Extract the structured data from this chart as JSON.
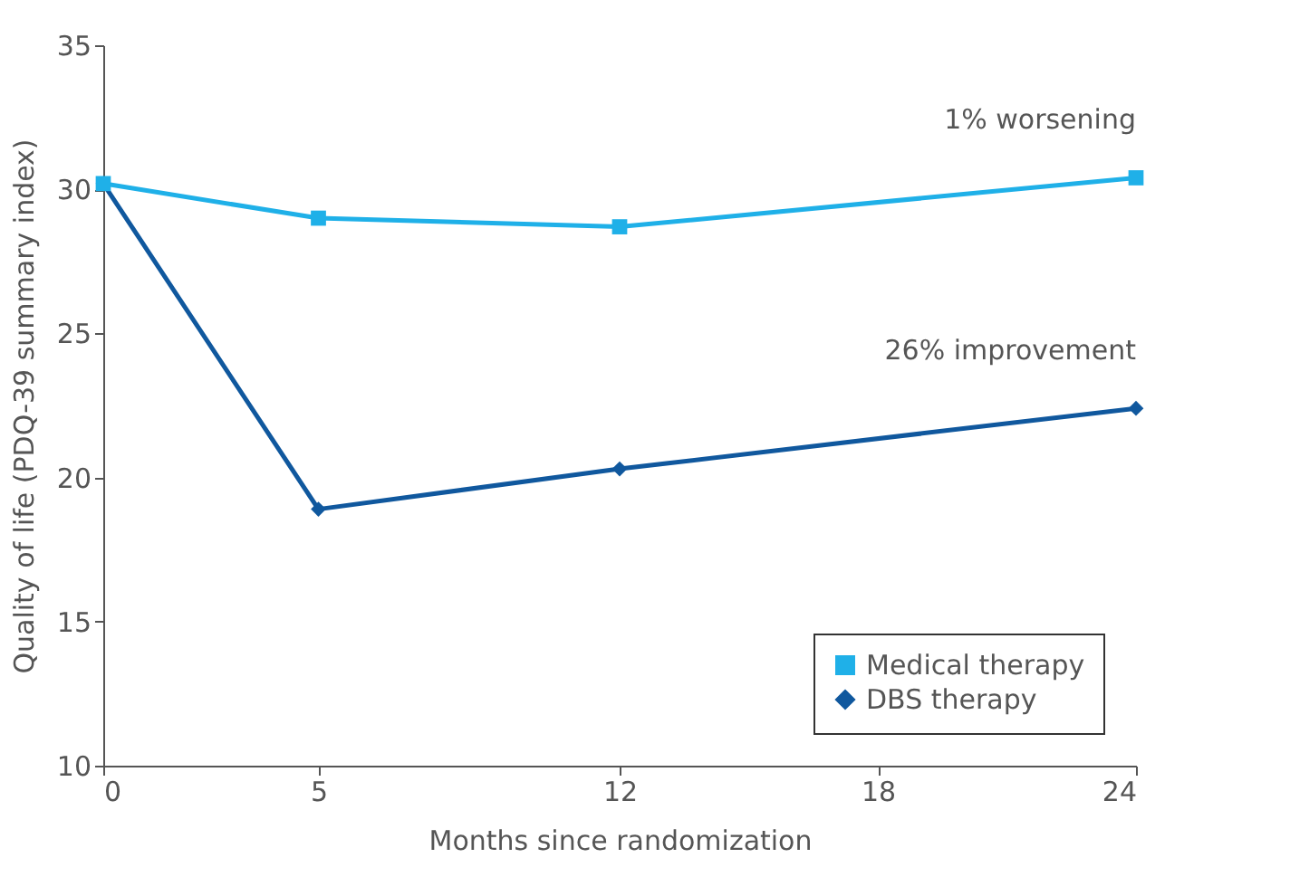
{
  "chart_data": {
    "type": "line",
    "xlabel": "Months since randomization",
    "ylabel": "Quality of life (PDQ-39 summary index)",
    "x": [
      0,
      5,
      12,
      24
    ],
    "xlim": [
      0,
      24
    ],
    "xticks": [
      0,
      5,
      12,
      18,
      24
    ],
    "ylim": [
      10,
      35
    ],
    "yticks": [
      10,
      15,
      20,
      25,
      30,
      35
    ],
    "series": [
      {
        "name": "Medical therapy",
        "color": "#1fb0e8",
        "marker": "square",
        "values": [
          30.2,
          29.0,
          28.7,
          30.4
        ]
      },
      {
        "name": "DBS therapy",
        "color": "#10589e",
        "marker": "diamond",
        "values": [
          30.2,
          18.9,
          20.3,
          22.4
        ]
      }
    ],
    "annotations": [
      {
        "text": "1% worsening",
        "x": 24,
        "y": 30.4
      },
      {
        "text": "26% improvement",
        "x": 24,
        "y": 22.4
      }
    ],
    "legend": "bottom right",
    "grid": false,
    "line_style": "solid"
  }
}
